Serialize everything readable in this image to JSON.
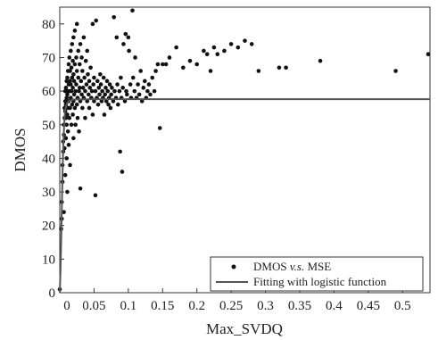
{
  "chart_data": {
    "type": "scatter",
    "xlabel": "Max_SVDQ",
    "ylabel": "DMOS",
    "xlim": [
      0,
      0.54
    ],
    "ylim": [
      0,
      85
    ],
    "xticks": [
      "0",
      "0.05",
      "0.1",
      "0.15",
      "0.2",
      "0.25",
      "0.3",
      "0.35",
      "0.4",
      "0.45",
      "0.5"
    ],
    "yticks": [
      "0",
      "10",
      "20",
      "30",
      "40",
      "50",
      "60",
      "70",
      "80"
    ],
    "grid": false,
    "legend_placement": "bottom-right",
    "legend": {
      "scatter_label_pre": "DMOS ",
      "scatter_label_vs": "v.s.",
      "scatter_label_post": " MSE",
      "line_label": "Fitting with logistic function"
    },
    "colors": {
      "points": "#111111",
      "fit_line": "#555555",
      "axes": "#333333"
    },
    "series": [
      {
        "type": "scatter",
        "points": [
          [
            0.0,
            1
          ],
          [
            0.002,
            19
          ],
          [
            0.003,
            22
          ],
          [
            0.003,
            27
          ],
          [
            0.004,
            33
          ],
          [
            0.004,
            38
          ],
          [
            0.005,
            42
          ],
          [
            0.005,
            45
          ],
          [
            0.006,
            47
          ],
          [
            0.006,
            50
          ],
          [
            0.006,
            24
          ],
          [
            0.007,
            52
          ],
          [
            0.007,
            55
          ],
          [
            0.007,
            43
          ],
          [
            0.008,
            54
          ],
          [
            0.008,
            57
          ],
          [
            0.008,
            60
          ],
          [
            0.008,
            35
          ],
          [
            0.009,
            52
          ],
          [
            0.009,
            56
          ],
          [
            0.009,
            61
          ],
          [
            0.009,
            46
          ],
          [
            0.01,
            50
          ],
          [
            0.01,
            58
          ],
          [
            0.01,
            63
          ],
          [
            0.01,
            40
          ],
          [
            0.011,
            53
          ],
          [
            0.011,
            59
          ],
          [
            0.011,
            64
          ],
          [
            0.011,
            30
          ],
          [
            0.012,
            55
          ],
          [
            0.012,
            60
          ],
          [
            0.012,
            66
          ],
          [
            0.012,
            48
          ],
          [
            0.013,
            57
          ],
          [
            0.013,
            62
          ],
          [
            0.013,
            68
          ],
          [
            0.013,
            44
          ],
          [
            0.014,
            52
          ],
          [
            0.014,
            60
          ],
          [
            0.014,
            70
          ],
          [
            0.015,
            55
          ],
          [
            0.015,
            63
          ],
          [
            0.015,
            66
          ],
          [
            0.015,
            38
          ],
          [
            0.016,
            58
          ],
          [
            0.016,
            62
          ],
          [
            0.016,
            72
          ],
          [
            0.017,
            50
          ],
          [
            0.017,
            60
          ],
          [
            0.017,
            67
          ],
          [
            0.018,
            56
          ],
          [
            0.018,
            64
          ],
          [
            0.018,
            74
          ],
          [
            0.019,
            53
          ],
          [
            0.019,
            61
          ],
          [
            0.019,
            69
          ],
          [
            0.02,
            57
          ],
          [
            0.02,
            65
          ],
          [
            0.02,
            76
          ],
          [
            0.02,
            46
          ],
          [
            0.021,
            59
          ],
          [
            0.021,
            63
          ],
          [
            0.022,
            55
          ],
          [
            0.022,
            68
          ],
          [
            0.022,
            78
          ],
          [
            0.023,
            60
          ],
          [
            0.023,
            50
          ],
          [
            0.024,
            62
          ],
          [
            0.024,
            70
          ],
          [
            0.025,
            56
          ],
          [
            0.025,
            66
          ],
          [
            0.025,
            80
          ],
          [
            0.026,
            58
          ],
          [
            0.026,
            52
          ],
          [
            0.027,
            64
          ],
          [
            0.027,
            72
          ],
          [
            0.028,
            60
          ],
          [
            0.028,
            48
          ],
          [
            0.029,
            61
          ],
          [
            0.029,
            68
          ],
          [
            0.03,
            57
          ],
          [
            0.03,
            74
          ],
          [
            0.03,
            31
          ],
          [
            0.031,
            63
          ],
          [
            0.032,
            59
          ],
          [
            0.032,
            70
          ],
          [
            0.033,
            55
          ],
          [
            0.033,
            66
          ],
          [
            0.034,
            61
          ],
          [
            0.035,
            58
          ],
          [
            0.035,
            76
          ],
          [
            0.036,
            64
          ],
          [
            0.037,
            52
          ],
          [
            0.037,
            60
          ],
          [
            0.038,
            69
          ],
          [
            0.039,
            62
          ],
          [
            0.04,
            57
          ],
          [
            0.04,
            72
          ],
          [
            0.041,
            65
          ],
          [
            0.042,
            59
          ],
          [
            0.043,
            55
          ],
          [
            0.043,
            63
          ],
          [
            0.044,
            61
          ],
          [
            0.045,
            67
          ],
          [
            0.046,
            58
          ],
          [
            0.047,
            60
          ],
          [
            0.048,
            80
          ],
          [
            0.048,
            53
          ],
          [
            0.049,
            62
          ],
          [
            0.05,
            64
          ],
          [
            0.05,
            57
          ],
          [
            0.052,
            29
          ],
          [
            0.052,
            60
          ],
          [
            0.053,
            81
          ],
          [
            0.054,
            58
          ],
          [
            0.055,
            63
          ],
          [
            0.056,
            56
          ],
          [
            0.057,
            61
          ],
          [
            0.058,
            59
          ],
          [
            0.059,
            65
          ],
          [
            0.06,
            62
          ],
          [
            0.061,
            57
          ],
          [
            0.062,
            60
          ],
          [
            0.063,
            58
          ],
          [
            0.064,
            64
          ],
          [
            0.065,
            53
          ],
          [
            0.066,
            59
          ],
          [
            0.067,
            61
          ],
          [
            0.068,
            57
          ],
          [
            0.069,
            63
          ],
          [
            0.07,
            60
          ],
          [
            0.071,
            56
          ],
          [
            0.072,
            58
          ],
          [
            0.073,
            62
          ],
          [
            0.074,
            55
          ],
          [
            0.075,
            59
          ],
          [
            0.076,
            61
          ],
          [
            0.078,
            57
          ],
          [
            0.079,
            82
          ],
          [
            0.08,
            60
          ],
          [
            0.082,
            58
          ],
          [
            0.083,
            76
          ],
          [
            0.084,
            62
          ],
          [
            0.085,
            56
          ],
          [
            0.087,
            60
          ],
          [
            0.088,
            42
          ],
          [
            0.089,
            64
          ],
          [
            0.09,
            58
          ],
          [
            0.091,
            36
          ],
          [
            0.092,
            61
          ],
          [
            0.093,
            74
          ],
          [
            0.095,
            57
          ],
          [
            0.096,
            77
          ],
          [
            0.097,
            60
          ],
          [
            0.098,
            59
          ],
          [
            0.1,
            76
          ],
          [
            0.101,
            72
          ],
          [
            0.103,
            62
          ],
          [
            0.104,
            58
          ],
          [
            0.106,
            84
          ],
          [
            0.107,
            64
          ],
          [
            0.109,
            60
          ],
          [
            0.11,
            70
          ],
          [
            0.112,
            58
          ],
          [
            0.114,
            62
          ],
          [
            0.116,
            59
          ],
          [
            0.118,
            66
          ],
          [
            0.12,
            57
          ],
          [
            0.122,
            61
          ],
          [
            0.124,
            63
          ],
          [
            0.126,
            58
          ],
          [
            0.128,
            60
          ],
          [
            0.13,
            62
          ],
          [
            0.132,
            59
          ],
          [
            0.135,
            64
          ],
          [
            0.138,
            60
          ],
          [
            0.14,
            66
          ],
          [
            0.143,
            68
          ],
          [
            0.146,
            49
          ],
          [
            0.15,
            68
          ],
          [
            0.155,
            68
          ],
          [
            0.16,
            70
          ],
          [
            0.17,
            73
          ],
          [
            0.18,
            67
          ],
          [
            0.19,
            69
          ],
          [
            0.2,
            68
          ],
          [
            0.21,
            72
          ],
          [
            0.215,
            71
          ],
          [
            0.22,
            66
          ],
          [
            0.225,
            73
          ],
          [
            0.23,
            71
          ],
          [
            0.24,
            72
          ],
          [
            0.25,
            74
          ],
          [
            0.26,
            73
          ],
          [
            0.27,
            75
          ],
          [
            0.28,
            74
          ],
          [
            0.29,
            66
          ],
          [
            0.32,
            67
          ],
          [
            0.33,
            67
          ],
          [
            0.38,
            69
          ],
          [
            0.49,
            66
          ],
          [
            0.54,
            71
          ]
        ]
      },
      {
        "type": "line",
        "points": [
          [
            0.0,
            0
          ],
          [
            0.001,
            6
          ],
          [
            0.002,
            15
          ],
          [
            0.003,
            25
          ],
          [
            0.004,
            35
          ],
          [
            0.005,
            43
          ],
          [
            0.006,
            48
          ],
          [
            0.007,
            52
          ],
          [
            0.008,
            54.5
          ],
          [
            0.01,
            56
          ],
          [
            0.012,
            56.8
          ],
          [
            0.015,
            57.2
          ],
          [
            0.02,
            57.5
          ],
          [
            0.05,
            57.6
          ],
          [
            0.54,
            57.6
          ]
        ]
      }
    ]
  }
}
